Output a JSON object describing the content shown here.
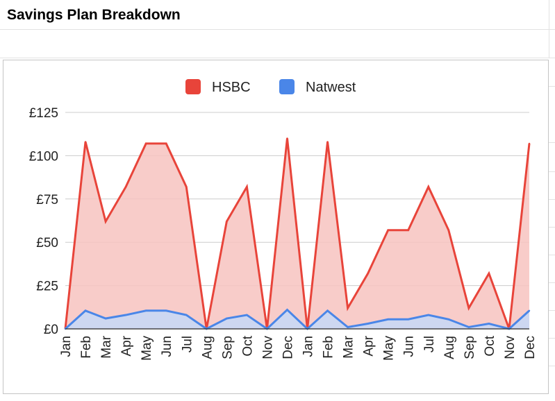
{
  "sheet": {
    "title": "Savings Plan Breakdown"
  },
  "chart_data": {
    "type": "area",
    "categories": [
      "Jan",
      "Feb",
      "Mar",
      "Apr",
      "May",
      "Jun",
      "Jul",
      "Aug",
      "Sep",
      "Oct",
      "Nov",
      "Dec",
      "Jan",
      "Feb",
      "Mar",
      "Apr",
      "May",
      "Jun",
      "Jul",
      "Aug",
      "Sep",
      "Oct",
      "Nov",
      "Dec"
    ],
    "series": [
      {
        "name": "HSBC",
        "color": "#e8443a",
        "fill": "#f7c3bf",
        "values": [
          0,
          108,
          62,
          82,
          107,
          107,
          82,
          0,
          62,
          82,
          0,
          110,
          0,
          108,
          12,
          32,
          57,
          57,
          82,
          57,
          12,
          32,
          0,
          107
        ]
      },
      {
        "name": "Natwest",
        "color": "#4a86e8",
        "fill": "#c5d8f8",
        "values": [
          0,
          10.5,
          6,
          8,
          10.5,
          10.5,
          8,
          0,
          6,
          8,
          0,
          11,
          0,
          10.5,
          1,
          3,
          5.5,
          5.5,
          8,
          5.5,
          1,
          3,
          0,
          10.5
        ]
      }
    ],
    "ylim": [
      0,
      125
    ],
    "yticks": [
      0,
      25,
      50,
      75,
      100,
      125
    ],
    "ytick_labels": [
      "£0",
      "£25",
      "£50",
      "£75",
      "£100",
      "£125"
    ],
    "xlabel": "",
    "ylabel": "",
    "grid": true,
    "legend": "top"
  }
}
